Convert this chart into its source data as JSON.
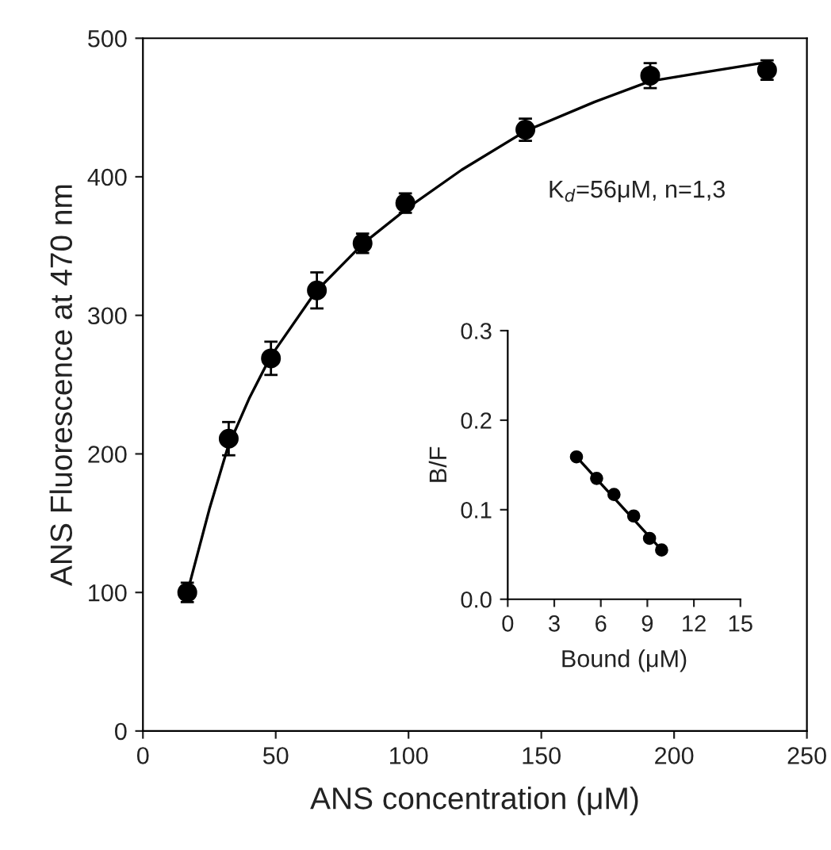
{
  "chart_data": [
    {
      "type": "scatter",
      "xlabel": "ANS concentration (μM)",
      "ylabel": "ANS Fluorescence at 470 nm",
      "annotations": [
        "K$_{d}$=56μM, n=1,3"
      ],
      "xlim": [
        0,
        250
      ],
      "ylim": [
        0,
        500
      ],
      "xticks": [
        0,
        50,
        100,
        150,
        200,
        250
      ],
      "yticks": [
        0,
        100,
        200,
        300,
        400,
        500
      ],
      "grid": false,
      "legend": false,
      "series": [
        {
          "color": "#000000",
          "marker": "circle",
          "x": [
            16.7,
            32.3,
            48.2,
            65.5,
            82.7,
            98.8,
            144,
            191,
            235
          ],
          "values": [
            100,
            211,
            269,
            318,
            352,
            381,
            434,
            473,
            477
          ],
          "errors": [
            7,
            12,
            12,
            13,
            7,
            7,
            8,
            9,
            7
          ]
        },
        {
          "type": "line",
          "color": "#000000",
          "marker": "none",
          "line_style": "solid",
          "x": [
            17,
            25,
            32,
            40,
            48,
            65,
            83,
            100,
            120,
            144,
            170,
            191,
            210,
            236
          ],
          "values": [
            102,
            160,
            205,
            240,
            270,
            317,
            352,
            378,
            405,
            433,
            454,
            469,
            475,
            483
          ]
        }
      ]
    },
    {
      "type": "scatter",
      "xlabel": "Bound (μM)",
      "ylabel": "B/F",
      "xlim": [
        0,
        15
      ],
      "ylim": [
        0,
        0.3
      ],
      "xticks": [
        0,
        3,
        6,
        9,
        12,
        15
      ],
      "yticks": [
        {
          "value": 0,
          "label": "0.0"
        },
        0.1,
        0.2,
        0.3
      ],
      "grid": false,
      "legend": false,
      "series": [
        {
          "color": "#000000",
          "marker": "circle",
          "x": [
            4.43,
            5.73,
            6.85,
            8.12,
            9.14,
            9.92
          ],
          "values": [
            0.159,
            0.135,
            0.117,
            0.093,
            0.068,
            0.055
          ]
        },
        {
          "type": "line",
          "color": "#000000",
          "marker": "none",
          "line_style": "solid",
          "x": [
            4.43,
            9.92
          ],
          "values": [
            0.159,
            0.055
          ]
        }
      ]
    }
  ]
}
